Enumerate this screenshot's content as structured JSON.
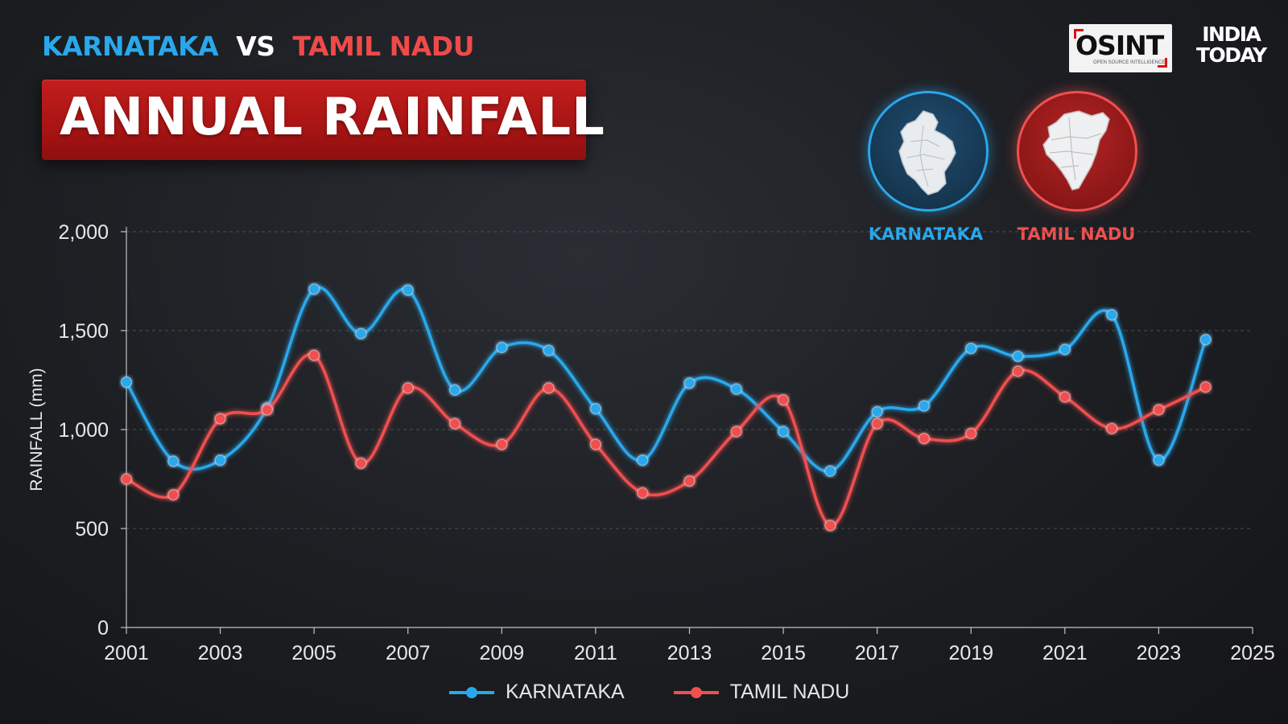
{
  "header": {
    "state_a": "KARNATAKA",
    "vs": "VS",
    "state_b": "TAMIL NADU",
    "banner": "ANNUAL RAINFALL"
  },
  "logos": {
    "osint": "OSINT",
    "osint_sub": "OPEN SOURCE INTELLIGENCE",
    "india_today_line1": "INDIA",
    "india_today_line2": "TODAY"
  },
  "badges": {
    "karnataka_label": "KARNATAKA",
    "tamil_nadu_label": "TAMIL NADU",
    "karnataka_color": "#2aa8ec",
    "tamil_nadu_color": "#f05050"
  },
  "chart_data": {
    "type": "line",
    "ylabel": "RAINFALL (mm)",
    "ylim": [
      0,
      2000
    ],
    "xlim": [
      2001,
      2025
    ],
    "yticks": [
      0,
      500,
      1000,
      1500,
      2000
    ],
    "ytick_labels": [
      "0",
      "500",
      "1,000",
      "1,500",
      "2,000"
    ],
    "xticks": [
      2001,
      2003,
      2005,
      2007,
      2009,
      2011,
      2013,
      2015,
      2017,
      2019,
      2021,
      2023,
      2025
    ],
    "xtick_labels": [
      "2001",
      "2003",
      "2005",
      "2007",
      "2009",
      "2011",
      "2013",
      "2015",
      "2017",
      "2019",
      "2021",
      "2023",
      "2025"
    ],
    "grid": "horizontal dashed",
    "legend_position": "bottom-center",
    "x": [
      2001,
      2002,
      2003,
      2004,
      2005,
      2006,
      2007,
      2008,
      2009,
      2010,
      2011,
      2012,
      2013,
      2014,
      2015,
      2016,
      2017,
      2018,
      2019,
      2020,
      2021,
      2022,
      2023,
      2024
    ],
    "series": [
      {
        "name": "KARNATAKA",
        "color": "#2aa8ec",
        "values": [
          1240,
          840,
          845,
          1110,
          1710,
          1485,
          1705,
          1200,
          1415,
          1400,
          1105,
          845,
          1235,
          1205,
          990,
          790,
          1090,
          1120,
          1410,
          1370,
          1405,
          1580,
          845,
          1455
        ]
      },
      {
        "name": "TAMIL NADU",
        "color": "#f05050",
        "values": [
          750,
          670,
          1055,
          1100,
          1375,
          830,
          1210,
          1030,
          925,
          1210,
          925,
          680,
          740,
          990,
          1150,
          515,
          1030,
          955,
          980,
          1295,
          1165,
          1005,
          1100,
          1215
        ]
      }
    ]
  }
}
